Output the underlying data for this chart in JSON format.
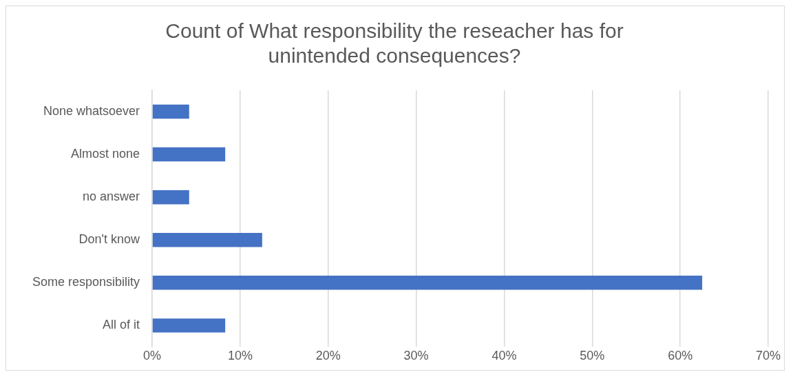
{
  "chart_data": {
    "type": "bar",
    "orientation": "horizontal",
    "title": "Count of What responsibility the reseacher has for unintended consequences?",
    "categories": [
      "None whatsoever",
      "Almost none",
      "no answer",
      "Don't know",
      "Some responsibility",
      "All of it"
    ],
    "values": [
      4.2,
      8.3,
      4.2,
      12.5,
      62.5,
      8.3
    ],
    "color": "#4472c4",
    "xlim": [
      0,
      70
    ],
    "xticks": [
      {
        "value": 0,
        "label": "0%"
      },
      {
        "value": 10,
        "label": "10%"
      },
      {
        "value": 20,
        "label": "20%"
      },
      {
        "value": 30,
        "label": "30%"
      },
      {
        "value": 40,
        "label": "40%"
      },
      {
        "value": 50,
        "label": "50%"
      },
      {
        "value": 60,
        "label": "60%"
      },
      {
        "value": 70,
        "label": "70%"
      }
    ],
    "grid": "x",
    "legend": false
  }
}
